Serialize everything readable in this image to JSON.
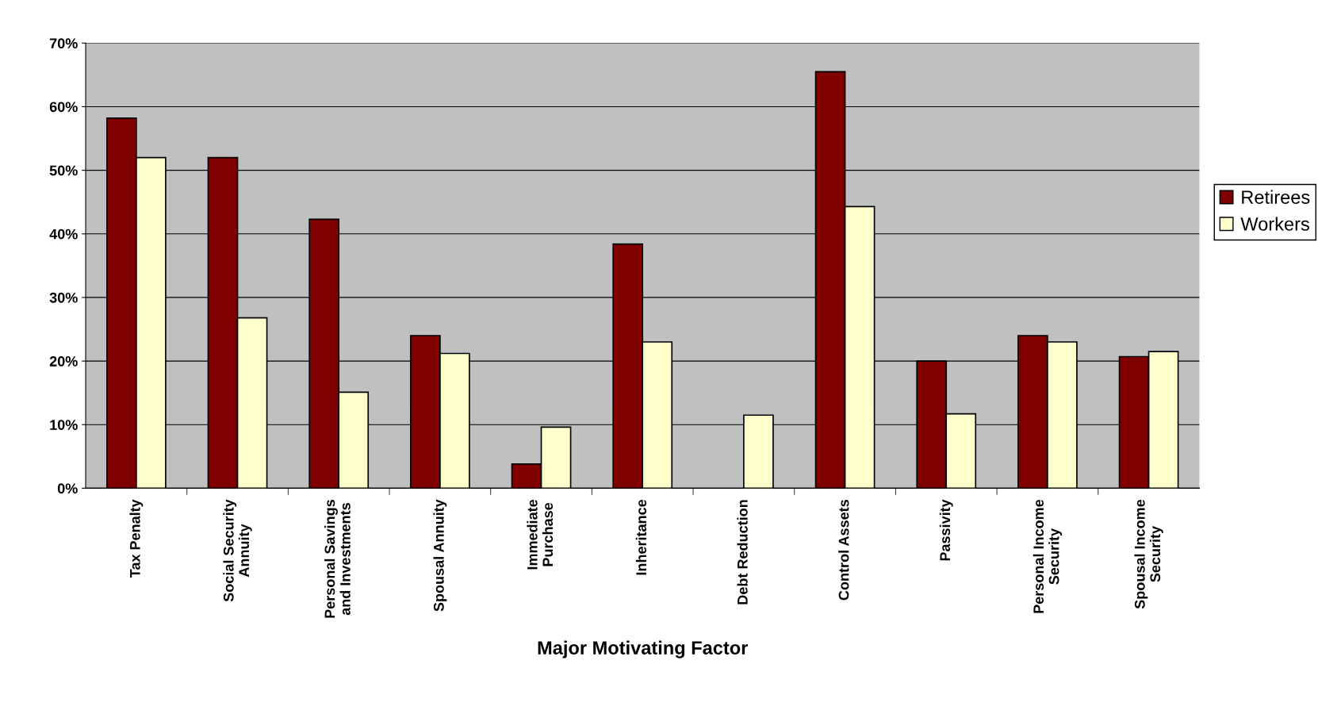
{
  "chart_data": {
    "type": "bar",
    "xlabel": "Major Motivating Factor",
    "categories": [
      "Tax Penalty",
      "Social Security\nAnnuity",
      "Personal Savings\nand Investments",
      "Spousal Annuity",
      "Immediate\nPurchase",
      "Inheritance",
      "Debt Reduction",
      "Control Assets",
      "Passivity",
      "Personal Income\nSecurity",
      "Spousal Income\nSecurity"
    ],
    "series": [
      {
        "name": "Retirees",
        "color": "#800000",
        "values": [
          58.2,
          52.0,
          42.3,
          24.0,
          3.8,
          38.4,
          null,
          65.5,
          20.0,
          24.0,
          20.7
        ]
      },
      {
        "name": "Workers",
        "color": "#ffffcc",
        "values": [
          52.0,
          26.8,
          15.1,
          21.2,
          9.6,
          23.0,
          11.5,
          44.3,
          11.7,
          23.0,
          21.5
        ]
      }
    ],
    "ylim": [
      0,
      70
    ],
    "yticks": [
      {
        "value": 0,
        "label": "0%"
      },
      {
        "value": 10,
        "label": "10%"
      },
      {
        "value": 20,
        "label": "20%"
      },
      {
        "value": 30,
        "label": "30%"
      },
      {
        "value": 40,
        "label": "40%"
      },
      {
        "value": 50,
        "label": "50%"
      },
      {
        "value": 60,
        "label": "60%"
      },
      {
        "value": 70,
        "label": "70%"
      }
    ],
    "grid": "y",
    "legend": "right"
  }
}
